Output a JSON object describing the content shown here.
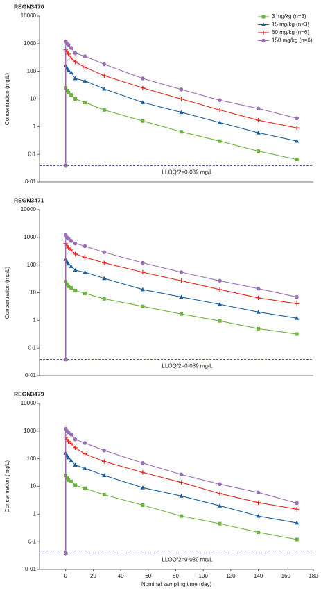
{
  "chart_data": [
    {
      "type": "line",
      "title": "REGN3470",
      "ylabel": "Concentration (mg/L)",
      "yscale": "log",
      "ylim": [
        0.01,
        10000
      ],
      "xlim": [
        -19,
        180
      ],
      "yticks": [
        10000,
        1000,
        100,
        10,
        1,
        {
          "value": 0.1,
          "label": "0·1"
        },
        {
          "value": 0.01,
          "label": "0·01"
        }
      ],
      "legend": "upper right",
      "lloq": {
        "value": 0.039,
        "label": "LLOQ/2=0·039 mg/L",
        "color": "#2a4f8a"
      },
      "x": [
        0,
        0,
        1,
        2,
        4,
        7,
        14,
        28,
        56,
        84,
        112,
        140,
        168
      ],
      "series": [
        {
          "name": "3 mg/kg (n=3)",
          "color": "#6db33f",
          "marker": "square",
          "values": [
            0.039,
            25,
            20,
            17,
            14,
            10,
            7.5,
            4,
            1.6,
            0.65,
            0.3,
            0.13,
            0.065
          ]
        },
        {
          "name": "15 mg/kg (n=3)",
          "color": "#1a5fa0",
          "marker": "triangle",
          "values": [
            0.039,
            160,
            130,
            110,
            90,
            55,
            45,
            23,
            7.5,
            3.3,
            1.4,
            0.6,
            0.3
          ]
        },
        {
          "name": "60 mg/kg (n=6)",
          "color": "#e3261c",
          "marker": "plus",
          "values": [
            0.039,
            600,
            500,
            420,
            300,
            220,
            140,
            70,
            25,
            10,
            4,
            1.7,
            0.9
          ]
        },
        {
          "name": "150 mg/kg (n=6)",
          "color": "#9b6fb6",
          "marker": "circle",
          "values": [
            0.039,
            1200,
            1000,
            900,
            700,
            450,
            350,
            180,
            55,
            22,
            9,
            4.5,
            2
          ]
        }
      ]
    },
    {
      "type": "line",
      "title": "REGN3471",
      "ylabel": "Concentration (mg/L)",
      "yscale": "log",
      "ylim": [
        0.01,
        10000
      ],
      "xlim": [
        -19,
        180
      ],
      "yticks": [
        10000,
        1000,
        100,
        10,
        1,
        {
          "value": 0.1,
          "label": "0·1"
        },
        {
          "value": 0.01,
          "label": "0·01"
        }
      ],
      "lloq": {
        "value": 0.039,
        "label": "LLOQ/2=0·039 mg/L",
        "color": "#2a4f8a"
      },
      "x": [
        0,
        0,
        1,
        2,
        4,
        7,
        14,
        28,
        56,
        84,
        112,
        140,
        168
      ],
      "series": [
        {
          "color": "#6db33f",
          "marker": "square",
          "values": [
            0.039,
            25,
            20,
            17,
            15,
            12,
            9.5,
            6,
            3.2,
            1.7,
            0.95,
            0.5,
            0.32
          ]
        },
        {
          "color": "#1a5fa0",
          "marker": "triangle",
          "values": [
            0.039,
            160,
            130,
            110,
            90,
            65,
            55,
            33,
            13,
            7,
            3.8,
            2,
            1.2
          ]
        },
        {
          "color": "#e3261c",
          "marker": "plus",
          "values": [
            0.039,
            600,
            500,
            420,
            350,
            250,
            190,
            120,
            55,
            27,
            13,
            6.5,
            4
          ]
        },
        {
          "color": "#9b6fb6",
          "marker": "circle",
          "values": [
            0.039,
            1200,
            1000,
            900,
            750,
            600,
            480,
            290,
            120,
            55,
            27,
            14,
            7
          ]
        }
      ]
    },
    {
      "type": "line",
      "title": "REGN3479",
      "ylabel": "Concentration (mg/L)",
      "xlabel": "Nominal sampling time (day)",
      "yscale": "log",
      "ylim": [
        0.01,
        10000
      ],
      "xlim": [
        -19,
        180
      ],
      "yticks": [
        10000,
        1000,
        100,
        10,
        1,
        {
          "value": 0.1,
          "label": "0·1"
        },
        {
          "value": 0.01,
          "label": "0·01"
        }
      ],
      "xticks": [
        0,
        20,
        40,
        60,
        80,
        100,
        120,
        140,
        160,
        180
      ],
      "lloq": {
        "value": 0.039,
        "label": "LLOQ/2=0·039 mg/L",
        "color": "#2a4f8a"
      },
      "x": [
        0,
        0,
        1,
        2,
        4,
        7,
        14,
        28,
        56,
        84,
        112,
        140,
        168
      ],
      "series": [
        {
          "color": "#6db33f",
          "marker": "square",
          "values": [
            0.039,
            25,
            20,
            17,
            15,
            11,
            8.5,
            5,
            2.1,
            0.85,
            0.45,
            0.22,
            0.12
          ]
        },
        {
          "color": "#1a5fa0",
          "marker": "triangle",
          "values": [
            0.039,
            160,
            130,
            110,
            85,
            60,
            45,
            25,
            9,
            4.5,
            2,
            0.85,
            0.48
          ]
        },
        {
          "color": "#e3261c",
          "marker": "plus",
          "values": [
            0.039,
            600,
            500,
            420,
            350,
            250,
            150,
            80,
            32,
            14,
            5.5,
            2.6,
            1.5
          ]
        },
        {
          "color": "#9b6fb6",
          "marker": "circle",
          "values": [
            0.039,
            1200,
            1000,
            900,
            750,
            500,
            370,
            200,
            70,
            27,
            12,
            6,
            2.5
          ]
        }
      ]
    }
  ]
}
